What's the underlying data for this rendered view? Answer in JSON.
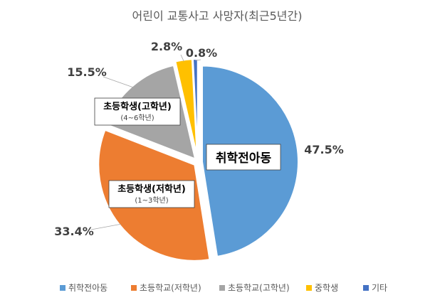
{
  "chart_data": {
    "type": "pie",
    "title": "어린이 교통사고 사망자(최근5년간)",
    "categories": [
      "취학전아동",
      "초등학교(저학년)",
      "초등학교(고학년)",
      "중학생",
      "기타"
    ],
    "values": [
      47.5,
      33.4,
      15.5,
      2.8,
      0.8
    ],
    "value_labels": [
      "47.5%",
      "33.4%",
      "15.5%",
      "2.8%",
      "0.8%"
    ],
    "colors": [
      "#5B9BD5",
      "#ED7D31",
      "#A5A5A5",
      "#FFC000",
      "#4472C4"
    ],
    "legend_position": "bottom",
    "callouts": [
      {
        "main": "취학전아동",
        "sub": ""
      },
      {
        "main": "초등학생(저학년)",
        "sub": "(1~3학년)"
      },
      {
        "main": "초등학생(고학년)",
        "sub": "(4~6학년)"
      }
    ]
  }
}
